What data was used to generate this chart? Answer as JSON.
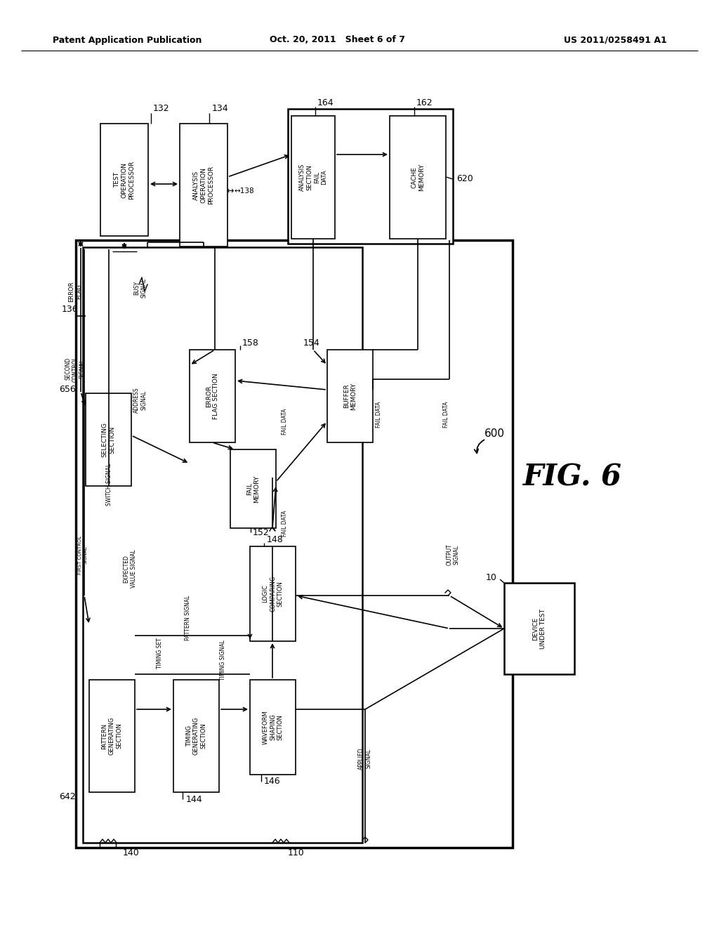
{
  "header_left": "Patent Application Publication",
  "header_mid": "Oct. 20, 2011   Sheet 6 of 7",
  "header_right": "US 2011/0258491 A1",
  "bg": "#ffffff"
}
